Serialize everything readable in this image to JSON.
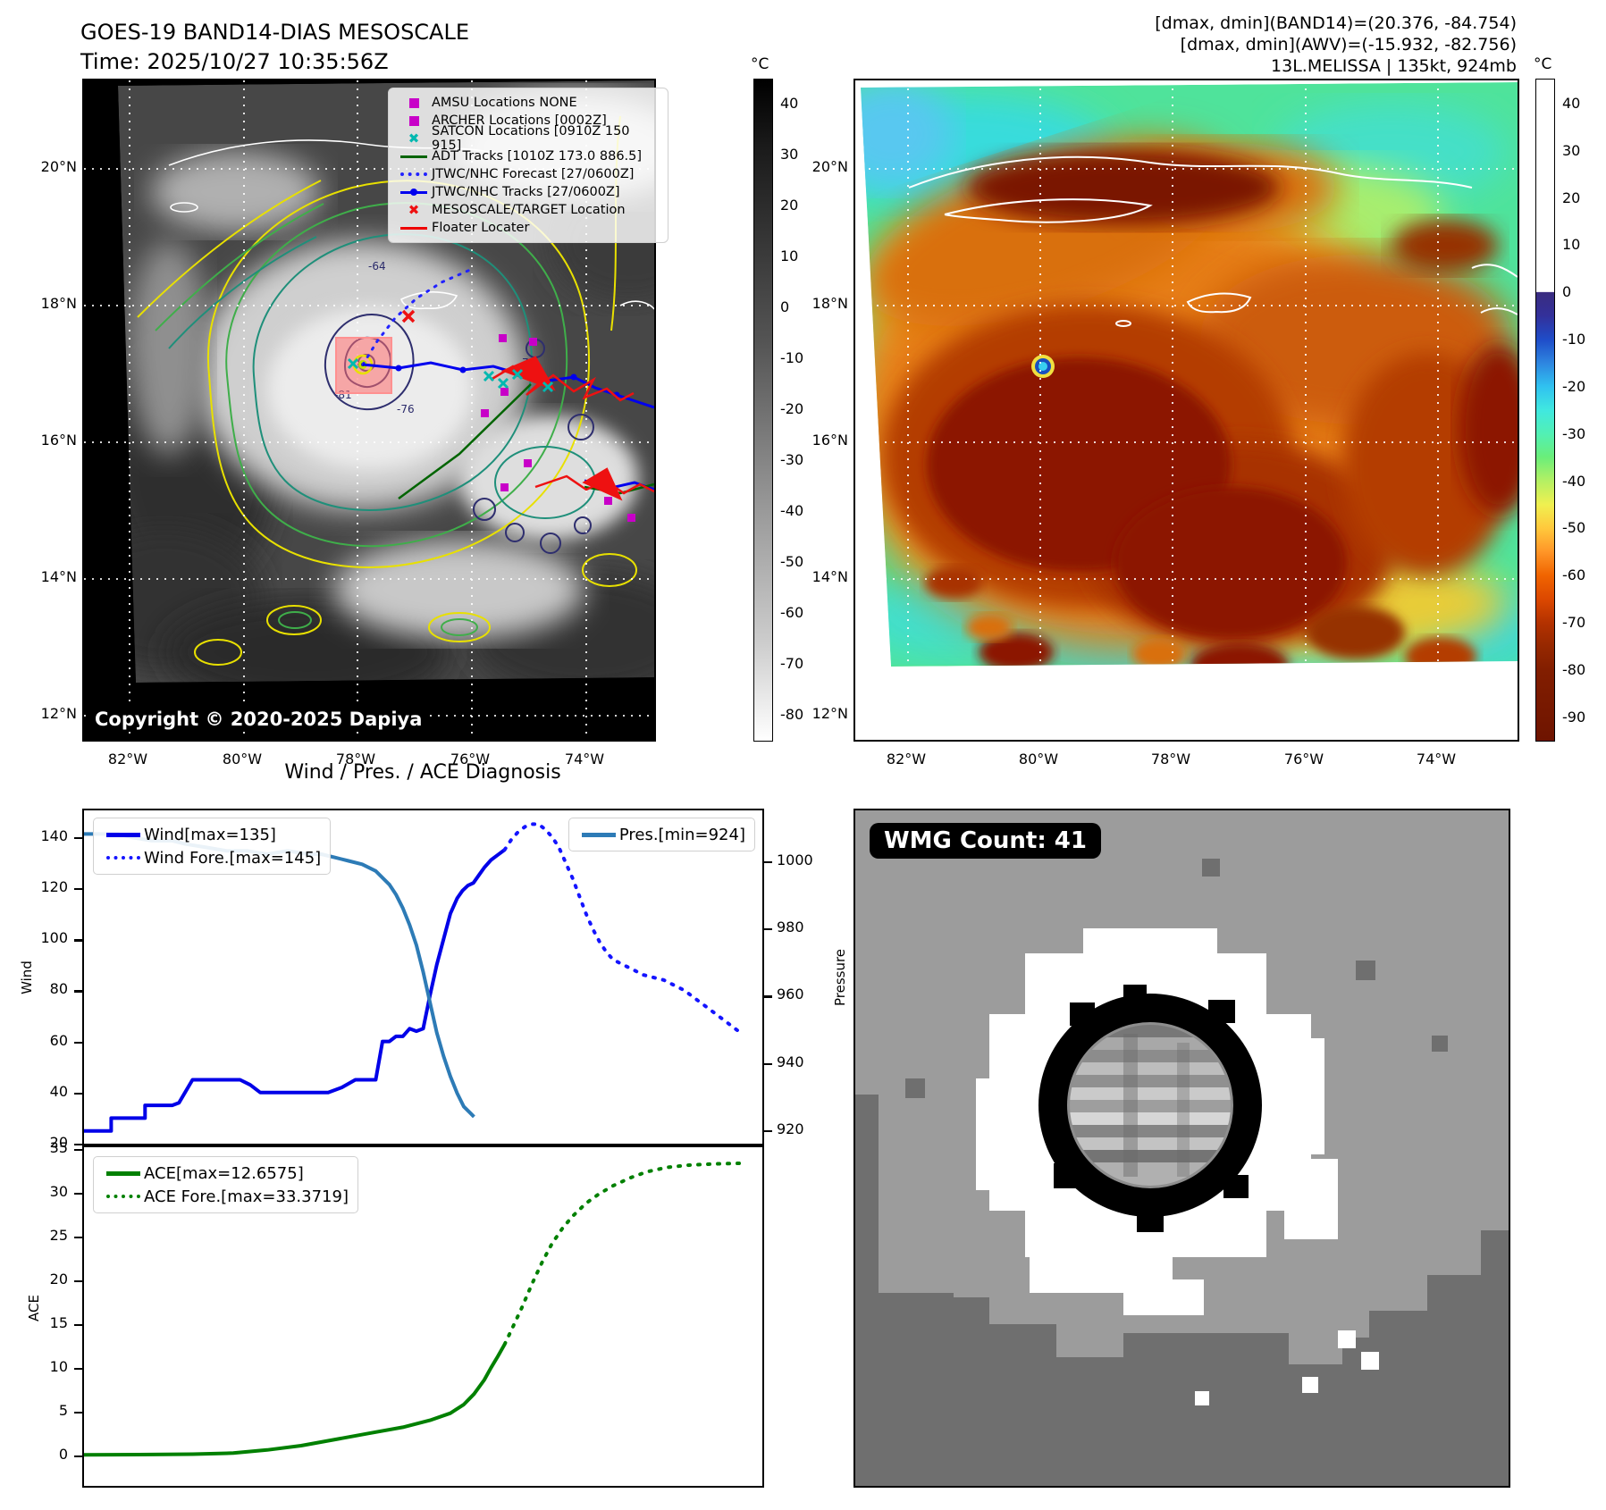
{
  "panel_band14": {
    "title": "GOES-19 BAND14-DIAS MESOSCALE",
    "subtitle": "Time: 2025/10/27 10:35:56Z",
    "copyright": "Copyright © 2020-2025 Dapiya",
    "colorbar": {
      "unit": "°C",
      "ticks": [
        40,
        30,
        20,
        10,
        0,
        -10,
        -20,
        -30,
        -40,
        -50,
        -60,
        -70,
        -80
      ]
    },
    "y_ticks": [
      "20°N",
      "18°N",
      "16°N",
      "14°N",
      "12°N"
    ],
    "x_ticks": [
      "82°W",
      "80°W",
      "78°W",
      "76°W",
      "74°W"
    ],
    "legend": [
      {
        "marker": "square-magenta",
        "label": "AMSU Locations NONE"
      },
      {
        "marker": "square-magenta",
        "label": "ARCHER Locations [0002Z]"
      },
      {
        "marker": "x-cyan",
        "label": "SATCON Locations [0910Z 150 915]"
      },
      {
        "marker": "line-green",
        "label": "ADT Tracks [1010Z 173.0 886.5]"
      },
      {
        "marker": "dotted-blue",
        "label": "JTWC/NHC Forecast [27/0600Z]"
      },
      {
        "marker": "linedot-blue",
        "label": "JTWC/NHC Tracks [27/0600Z]"
      },
      {
        "marker": "x-red",
        "label": "MESOSCALE/TARGET Location"
      },
      {
        "marker": "line-red",
        "label": "Floater Locater"
      }
    ],
    "contour_labels": [
      "-64",
      "-81",
      "-76",
      "76"
    ]
  },
  "panel_awv": {
    "header_line1": "[dmax, dmin](BAND14)=(20.376, -84.754)",
    "header_line2": "[dmax, dmin](AWV)=(-15.932, -82.756)",
    "header_line3": "13L.MELISSA | 135kt, 924mb",
    "colorbar": {
      "unit": "°C",
      "ticks": [
        40,
        30,
        20,
        10,
        0,
        -10,
        -20,
        -30,
        -40,
        -50,
        -60,
        -70,
        -80,
        -90
      ]
    },
    "y_ticks": [
      "20°N",
      "18°N",
      "16°N",
      "14°N",
      "12°N"
    ],
    "x_ticks": [
      "82°W",
      "80°W",
      "78°W",
      "76°W",
      "74°W"
    ]
  },
  "diagnosis": {
    "title": "Wind / Pres. / ACE Diagnosis"
  },
  "wmg": {
    "label": "WMG Count: 41"
  },
  "chart_data": [
    {
      "type": "line",
      "title": "Wind / Pres. / ACE Diagnosis",
      "ylabel_left": "Wind",
      "ylabel_right": "Pressure",
      "ylim_left": [
        20,
        150.4
      ],
      "ylim_right": [
        916,
        1015
      ],
      "xlim": [
        0,
        100
      ],
      "yticks_left": [
        140,
        120,
        100,
        80,
        60,
        40,
        20
      ],
      "yticks_right": [
        1000,
        980,
        960,
        940,
        920
      ],
      "xticks": [],
      "grid": false,
      "legend_left_pos": "upper-left",
      "legend_right_pos": "upper-right",
      "series": [
        {
          "name": "Wind[max=135]",
          "axis": "left",
          "style": "solid",
          "color": "#0000e8",
          "points": [
            [
              0,
              25
            ],
            [
              4,
              25
            ],
            [
              4,
              30
            ],
            [
              9,
              30
            ],
            [
              9,
              35
            ],
            [
              13,
              35
            ],
            [
              14,
              36
            ],
            [
              16,
              45
            ],
            [
              23,
              45
            ],
            [
              24.5,
              43
            ],
            [
              26,
              40
            ],
            [
              36,
              40
            ],
            [
              38,
              42
            ],
            [
              40,
              45
            ],
            [
              43,
              45
            ],
            [
              44,
              60
            ],
            [
              45,
              60
            ],
            [
              46,
              62
            ],
            [
              47,
              62
            ],
            [
              48,
              65
            ],
            [
              49,
              64
            ],
            [
              50,
              65
            ],
            [
              51,
              78
            ],
            [
              52,
              90
            ],
            [
              53,
              100
            ],
            [
              54,
              110
            ],
            [
              55,
              116
            ],
            [
              55.8,
              119
            ],
            [
              56.6,
              121
            ],
            [
              57.4,
              122
            ],
            [
              58.2,
              125
            ],
            [
              59,
              128
            ],
            [
              60,
              131
            ],
            [
              61,
              133
            ],
            [
              62,
              135
            ]
          ]
        },
        {
          "name": "Wind Fore.[max=145]",
          "axis": "left",
          "style": "dotted",
          "color": "#1414ff",
          "points": [
            [
              62,
              135
            ],
            [
              63,
              139
            ],
            [
              64,
              142
            ],
            [
              65,
              144
            ],
            [
              66,
              145
            ],
            [
              67,
              145
            ],
            [
              68,
              143
            ],
            [
              69,
              140
            ],
            [
              70,
              136
            ],
            [
              71,
              130
            ],
            [
              72,
              124
            ],
            [
              73,
              117
            ],
            [
              74,
              110
            ],
            [
              75,
              104
            ],
            [
              76,
              99
            ],
            [
              77,
              95
            ],
            [
              78,
              92
            ],
            [
              79.5,
              90
            ],
            [
              81,
              88
            ],
            [
              82.5,
              86
            ],
            [
              84,
              85
            ],
            [
              85.5,
              84
            ],
            [
              87,
              82
            ],
            [
              88.5,
              80
            ],
            [
              90,
              77
            ],
            [
              91.5,
              74
            ],
            [
              93,
              71
            ],
            [
              94.5,
              68
            ],
            [
              96,
              65
            ],
            [
              97,
              63
            ]
          ]
        },
        {
          "name": "Pres.[min=924]",
          "axis": "right",
          "style": "solid",
          "color": "#2d7bb6",
          "points": [
            [
              0,
              1008
            ],
            [
              5,
              1008
            ],
            [
              7,
              1007
            ],
            [
              10,
              1006
            ],
            [
              13,
              1006
            ],
            [
              15,
              1005
            ],
            [
              18,
              1004
            ],
            [
              21,
              1003
            ],
            [
              24,
              1003
            ],
            [
              27,
              1002
            ],
            [
              30,
              1003
            ],
            [
              33,
              1002
            ],
            [
              35,
              1002
            ],
            [
              37,
              1001
            ],
            [
              39,
              1000
            ],
            [
              41,
              999
            ],
            [
              43,
              997
            ],
            [
              45,
              993
            ],
            [
              46,
              990
            ],
            [
              47,
              986
            ],
            [
              48,
              981
            ],
            [
              49,
              975
            ],
            [
              50,
              967
            ],
            [
              51,
              958
            ],
            [
              52,
              949
            ],
            [
              53,
              942
            ],
            [
              54,
              936
            ],
            [
              55,
              931
            ],
            [
              56,
              927
            ],
            [
              57,
              925
            ],
            [
              57.5,
              924
            ]
          ]
        }
      ]
    },
    {
      "type": "line",
      "ylabel_left": "ACE",
      "ylim_left": [
        -3.5,
        35.2
      ],
      "xlim": [
        0,
        100
      ],
      "yticks_left": [
        35,
        30,
        25,
        20,
        15,
        10,
        5,
        0
      ],
      "xticks": [],
      "grid": false,
      "series": [
        {
          "name": "ACE[max=12.6575]",
          "axis": "left",
          "style": "solid",
          "color": "#008000",
          "points": [
            [
              0,
              0.05
            ],
            [
              8,
              0.07
            ],
            [
              16,
              0.12
            ],
            [
              22,
              0.25
            ],
            [
              27,
              0.6
            ],
            [
              32,
              1.1
            ],
            [
              37,
              1.8
            ],
            [
              42,
              2.5
            ],
            [
              47,
              3.2
            ],
            [
              51,
              4.0
            ],
            [
              54,
              4.8
            ],
            [
              56,
              5.8
            ],
            [
              57.5,
              7.0
            ],
            [
              59,
              8.6
            ],
            [
              60,
              10.0
            ],
            [
              61,
              11.3
            ],
            [
              62,
              12.66
            ]
          ]
        },
        {
          "name": "ACE Fore.[max=33.3719]",
          "axis": "left",
          "style": "dotted",
          "color": "#008000",
          "points": [
            [
              62,
              12.66
            ],
            [
              63,
              14.3
            ],
            [
              64.5,
              16.8
            ],
            [
              66,
              19.5
            ],
            [
              67.5,
              22.0
            ],
            [
              69,
              24.2
            ],
            [
              70.5,
              25.9
            ],
            [
              72,
              27.3
            ],
            [
              74,
              28.8
            ],
            [
              76,
              29.9
            ],
            [
              78,
              30.8
            ],
            [
              80.5,
              31.7
            ],
            [
              83,
              32.4
            ],
            [
              86,
              32.9
            ],
            [
              89,
              33.15
            ],
            [
              93,
              33.3
            ],
            [
              97,
              33.37
            ]
          ]
        }
      ]
    }
  ]
}
